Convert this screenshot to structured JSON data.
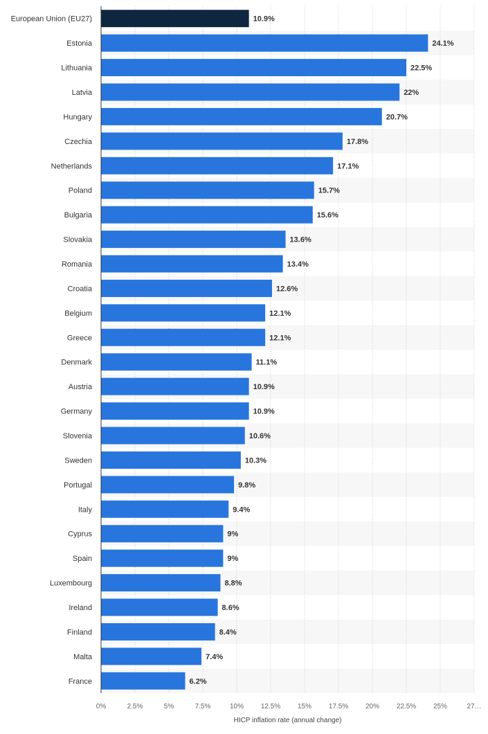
{
  "chart_data": {
    "type": "bar",
    "orientation": "horizontal",
    "title": "",
    "xlabel": "HICP inflation rate (annual change)",
    "ylabel": "",
    "xlim": [
      0,
      27.5
    ],
    "x_ticks": [
      0,
      2.5,
      5,
      7.5,
      10,
      12.5,
      15,
      17.5,
      20,
      22.5,
      25,
      27.5
    ],
    "x_tick_labels": [
      "0%",
      "2.5%",
      "5%",
      "7.5%",
      "10%",
      "12.5%",
      "15%",
      "17.5%",
      "20%",
      "22.5%",
      "25%",
      "27…"
    ],
    "grid": true,
    "categories": [
      "European Union (EU27)",
      "Estonia",
      "Lithuania",
      "Latvia",
      "Hungary",
      "Czechia",
      "Netherlands",
      "Poland",
      "Bulgaria",
      "Slovakia",
      "Romania",
      "Croatia",
      "Belgium",
      "Greece",
      "Denmark",
      "Austria",
      "Germany",
      "Slovenia",
      "Sweden",
      "Portugal",
      "Italy",
      "Cyprus",
      "Spain",
      "Luxembourg",
      "Ireland",
      "Finland",
      "Malta",
      "France"
    ],
    "values": [
      10.9,
      24.1,
      22.5,
      22,
      20.7,
      17.8,
      17.1,
      15.7,
      15.6,
      13.6,
      13.4,
      12.6,
      12.1,
      12.1,
      11.1,
      10.9,
      10.9,
      10.6,
      10.3,
      9.8,
      9.4,
      9,
      9,
      8.8,
      8.6,
      8.4,
      7.4,
      6.2
    ],
    "value_labels": [
      "10.9%",
      "24.1%",
      "22.5%",
      "22%",
      "20.7%",
      "17.8%",
      "17.1%",
      "15.7%",
      "15.6%",
      "13.6%",
      "13.4%",
      "12.6%",
      "12.1%",
      "12.1%",
      "11.1%",
      "10.9%",
      "10.9%",
      "10.6%",
      "10.3%",
      "9.8%",
      "9.4%",
      "9%",
      "9%",
      "8.8%",
      "8.6%",
      "8.4%",
      "7.4%",
      "6.2%"
    ],
    "highlight_index": 0,
    "colors": {
      "bar": "#2876dd",
      "highlight": "#0f2640",
      "band": "#f7f7f7",
      "grid": "#cccccc"
    }
  }
}
